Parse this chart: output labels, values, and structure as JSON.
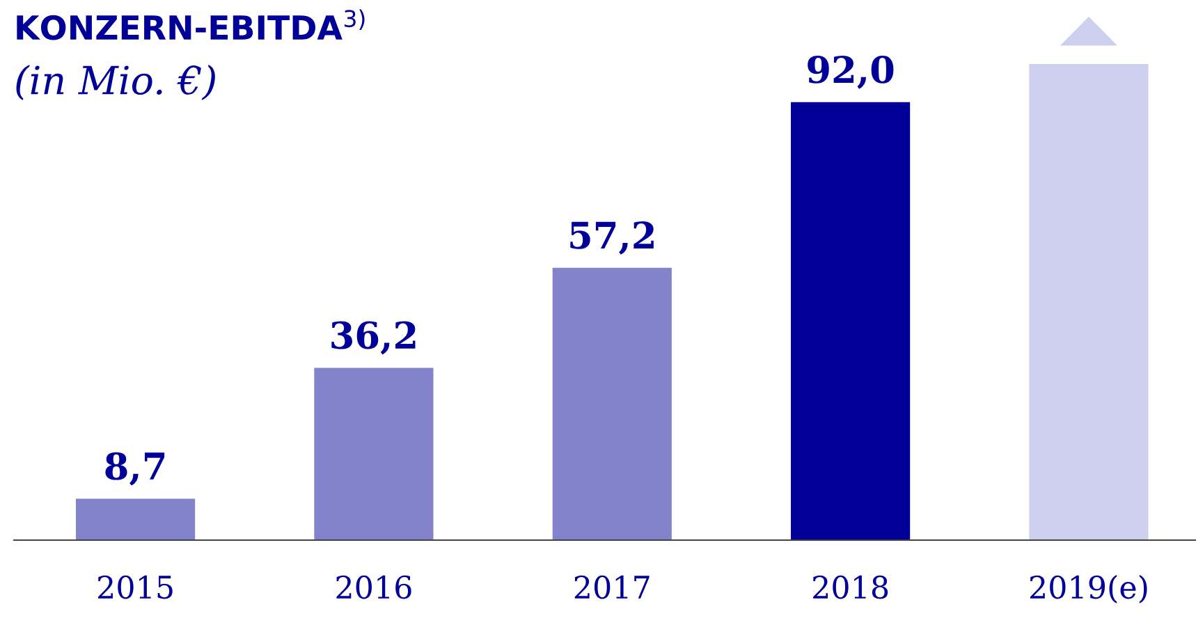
{
  "chart_data": {
    "type": "bar",
    "title": "KONZERN-EBITDA$^{3)}$",
    "subtitle": "(in Mio. €)",
    "categories": [
      "2015",
      "2016",
      "2017",
      "2018",
      "2019(e)"
    ],
    "values": [
      8.7,
      36.2,
      57.2,
      92.0,
      100
    ],
    "colors": [
      "#8383cc",
      "#8383cc",
      "#8383cc",
      "#000099",
      "#cccfee"
    ],
    "value_labels": [
      "8,7",
      "36,2",
      "57,2",
      "92,0",
      null
    ],
    "grid": false,
    "legend": false
  }
}
